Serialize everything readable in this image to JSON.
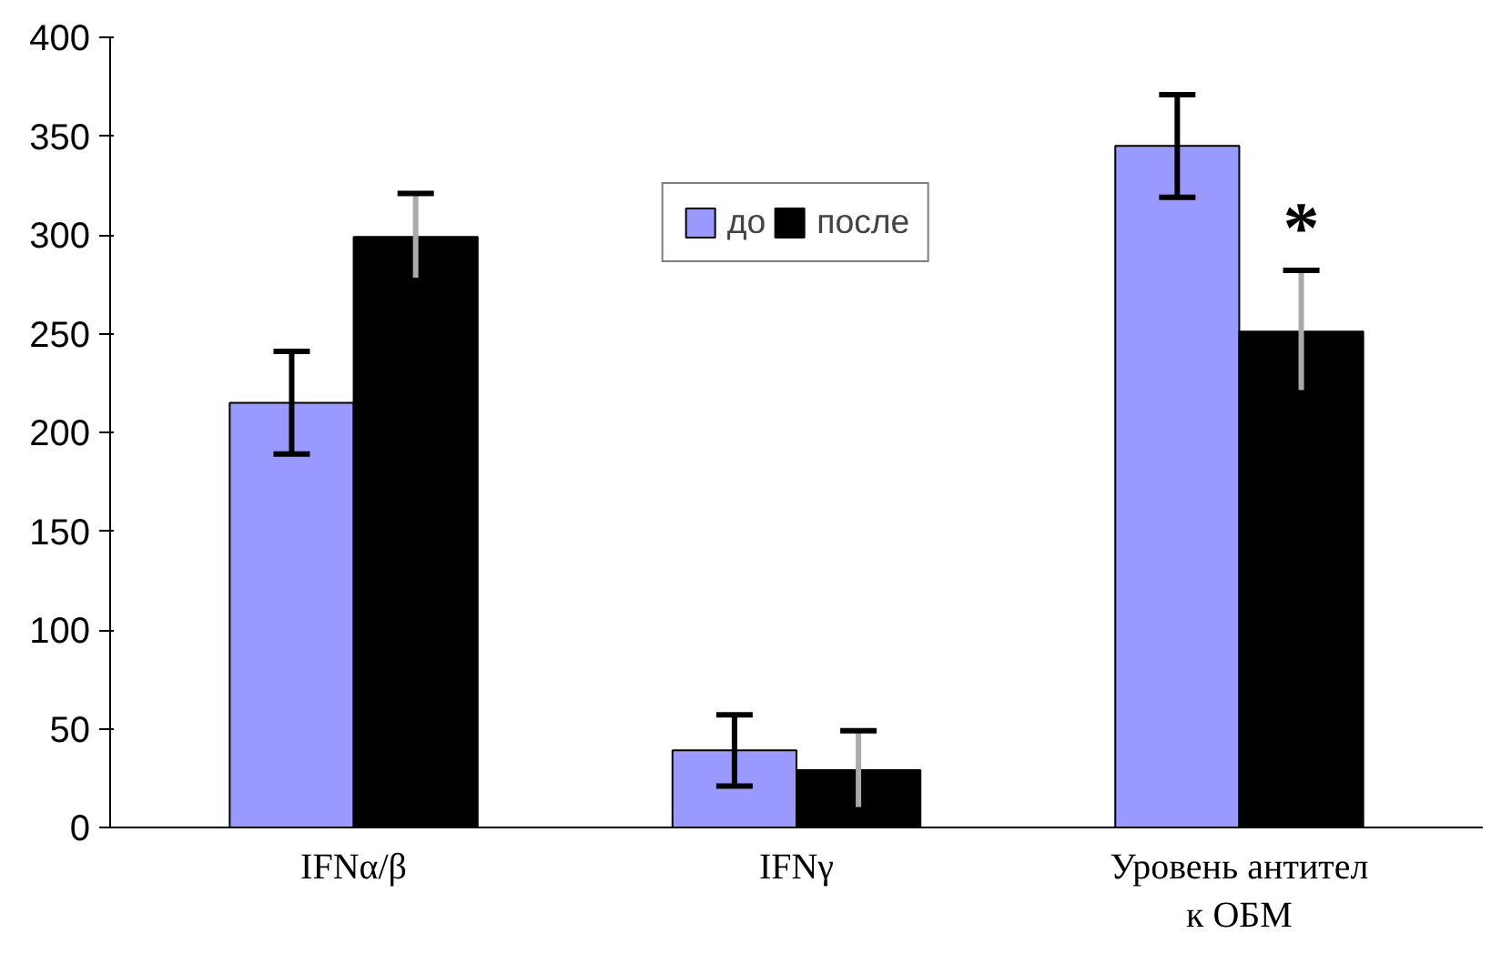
{
  "chart_data": {
    "type": "bar",
    "categories": [
      "IFNα/β",
      "IFNγ",
      "Уровень антител к ОБМ"
    ],
    "series": [
      {
        "name": "до",
        "color": "#9999ff",
        "values": [
          215,
          39,
          345
        ],
        "errors": [
          26,
          18,
          26
        ]
      },
      {
        "name": "после",
        "color": "#000000",
        "values": [
          299,
          29,
          251
        ],
        "errors": [
          22,
          20,
          31
        ]
      }
    ],
    "ylim": [
      0,
      400
    ],
    "yticks": [
      0,
      50,
      100,
      150,
      200,
      250,
      300,
      350,
      400
    ],
    "grid": false,
    "legend": "top",
    "annotations": [
      {
        "text": "*",
        "x": "Уровень антител к ОБМ",
        "y": 283
      }
    ]
  }
}
